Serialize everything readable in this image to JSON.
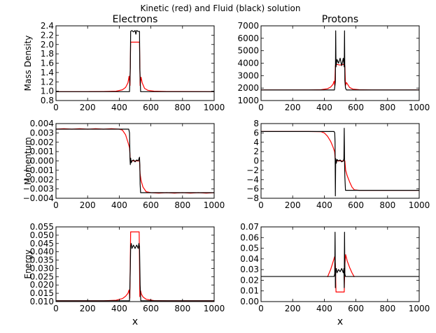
{
  "figure": {
    "suptitle": "Kinetic (red) and Fluid (black) solution",
    "legend_meaning": {
      "kinetic": "red",
      "fluid": "black"
    }
  },
  "colors": {
    "kinetic": "#ff0000",
    "fluid": "#000000",
    "axes": "#000000",
    "background": "#ffffff"
  },
  "chart_data": [
    {
      "id": "electrons-mass-density",
      "type": "line",
      "title": "Electrons",
      "xlabel": "",
      "ylabel": "Mass Density",
      "xlim": [
        0,
        1000
      ],
      "ylim": [
        0.8,
        2.4
      ],
      "xticks": [
        0,
        200,
        400,
        600,
        800,
        1000
      ],
      "yticks": [
        0.8,
        1.0,
        1.2,
        1.4,
        1.6,
        1.8,
        2.0,
        2.2,
        2.4
      ],
      "ytick_labels": [
        "0.8",
        "1.0",
        "1.2",
        "1.4",
        "1.6",
        "1.8",
        "2.0",
        "2.2",
        "2.4"
      ],
      "series": [
        {
          "name": "Kinetic",
          "color": "red",
          "x": [
            0,
            200,
            300,
            380,
            420,
            440,
            455,
            462,
            468,
            472,
            480,
            500,
            520,
            528,
            532,
            538,
            545,
            560,
            580,
            620,
            700,
            1000
          ],
          "y": [
            0.99,
            0.99,
            0.993,
            1.0,
            1.03,
            1.08,
            1.18,
            1.32,
            1.12,
            2.05,
            2.05,
            2.05,
            2.05,
            2.05,
            1.12,
            1.3,
            1.18,
            1.06,
            1.02,
            1.0,
            0.993,
            0.99
          ]
        },
        {
          "name": "Fluid",
          "color": "black",
          "x": [
            0,
            465,
            470,
            472,
            480,
            490,
            500,
            505,
            510,
            520,
            528,
            530,
            535,
            1000
          ],
          "y": [
            0.99,
            0.99,
            1.5,
            2.28,
            2.3,
            2.27,
            2.3,
            2.22,
            2.3,
            2.28,
            2.28,
            1.5,
            0.99,
            0.99
          ]
        }
      ]
    },
    {
      "id": "protons-mass-density",
      "type": "line",
      "title": "Protons",
      "xlabel": "",
      "ylabel": "",
      "xlim": [
        0,
        1000
      ],
      "ylim": [
        1000,
        7000
      ],
      "xticks": [
        0,
        200,
        400,
        600,
        800,
        1000
      ],
      "yticks": [
        1000,
        2000,
        3000,
        4000,
        5000,
        6000,
        7000
      ],
      "ytick_labels": [
        "1000",
        "2000",
        "3000",
        "4000",
        "5000",
        "6000",
        "7000"
      ],
      "series": [
        {
          "name": "Kinetic",
          "color": "red",
          "x": [
            0,
            300,
            380,
            420,
            440,
            455,
            462,
            466,
            470,
            480,
            500,
            520,
            530,
            534,
            540,
            550,
            560,
            580,
            620,
            700,
            1000
          ],
          "y": [
            1850,
            1850,
            1870,
            1950,
            2080,
            2300,
            2550,
            2200,
            3800,
            3900,
            3850,
            3900,
            3800,
            2200,
            2450,
            2250,
            2050,
            1920,
            1870,
            1850,
            1850
          ]
        },
        {
          "name": "Fluid",
          "color": "black",
          "x": [
            0,
            464,
            470,
            472,
            474,
            480,
            490,
            500,
            510,
            520,
            526,
            528,
            530,
            534,
            540,
            1000
          ],
          "y": [
            1850,
            1850,
            2500,
            6600,
            3700,
            4300,
            4000,
            4400,
            3800,
            4400,
            3700,
            6600,
            2600,
            2000,
            1850,
            1850
          ]
        }
      ]
    },
    {
      "id": "electrons-momentum",
      "type": "line",
      "title": "",
      "xlabel": "",
      "ylabel": "Momentum",
      "xlim": [
        0,
        1000
      ],
      "ylim": [
        -0.004,
        0.004
      ],
      "xticks": [
        0,
        200,
        400,
        600,
        800,
        1000
      ],
      "yticks": [
        -0.004,
        -0.003,
        -0.002,
        -0.001,
        0.0,
        0.001,
        0.002,
        0.003,
        0.004
      ],
      "ytick_labels": [
        "−0.004",
        "−0.003",
        "−0.002",
        "−0.001",
        "0.000",
        "0.001",
        "0.002",
        "0.003",
        "0.004"
      ],
      "series": [
        {
          "name": "Kinetic",
          "color": "red",
          "x": [
            0,
            50,
            100,
            150,
            200,
            250,
            300,
            350,
            400,
            420,
            440,
            455,
            465,
            470,
            480,
            500,
            520,
            528,
            532,
            538,
            550,
            570,
            600,
            650,
            700,
            750,
            800,
            850,
            900,
            950,
            1000
          ],
          "y": [
            0.0034,
            0.00345,
            0.0034,
            0.00345,
            0.0034,
            0.00345,
            0.0034,
            0.00345,
            0.0034,
            0.0033,
            0.0028,
            0.002,
            0.0014,
            0.0,
            0.0,
            0.0,
            0.0,
            0.0,
            -0.0014,
            -0.0021,
            -0.0028,
            -0.0033,
            -0.0034,
            -0.00345,
            -0.0034,
            -0.00345,
            -0.0034,
            -0.00345,
            -0.0034,
            -0.00345,
            -0.0034
          ]
        },
        {
          "name": "Fluid",
          "color": "black",
          "x": [
            0,
            460,
            465,
            468,
            470,
            472,
            476,
            480,
            490,
            500,
            510,
            520,
            524,
            528,
            530,
            532,
            535,
            540,
            1000
          ],
          "y": [
            0.0034,
            0.0034,
            0.003,
            0.0002,
            -0.0004,
            0.0003,
            -0.0002,
            0.0,
            0.0001,
            -0.0001,
            0.0001,
            0.0,
            0.0002,
            0.0004,
            -0.0004,
            -0.0025,
            -0.0034,
            -0.0034,
            -0.0034
          ]
        }
      ]
    },
    {
      "id": "protons-momentum",
      "type": "line",
      "title": "",
      "xlabel": "",
      "ylabel": "",
      "xlim": [
        0,
        1000
      ],
      "ylim": [
        -8,
        8
      ],
      "xticks": [
        0,
        200,
        400,
        600,
        800,
        1000
      ],
      "yticks": [
        -8,
        -6,
        -4,
        -2,
        0,
        2,
        4,
        6,
        8
      ],
      "ytick_labels": [
        "−8",
        "−6",
        "−4",
        "−2",
        "0",
        "2",
        "4",
        "6",
        "8"
      ],
      "series": [
        {
          "name": "Kinetic",
          "color": "red",
          "x": [
            0,
            300,
            380,
            400,
            420,
            440,
            455,
            465,
            470,
            480,
            500,
            520,
            530,
            535,
            545,
            560,
            575,
            590,
            620,
            700,
            1000
          ],
          "y": [
            6.3,
            6.3,
            6.25,
            6.0,
            5.3,
            4.2,
            3.0,
            2.0,
            0.0,
            0.0,
            0.0,
            0.0,
            0.0,
            -2.0,
            -3.2,
            -4.5,
            -5.6,
            -6.2,
            -6.3,
            -6.3,
            -6.3
          ]
        },
        {
          "name": "Fluid",
          "color": "black",
          "x": [
            0,
            462,
            466,
            468,
            470,
            472,
            476,
            480,
            490,
            500,
            510,
            520,
            524,
            526,
            528,
            530,
            534,
            540,
            1000
          ],
          "y": [
            6.3,
            6.3,
            6.0,
            4.0,
            -7.5,
            0.5,
            -0.5,
            0.3,
            0.0,
            0.2,
            -0.2,
            0.0,
            0.5,
            7.0,
            0.0,
            -3.5,
            -6.3,
            -6.3,
            -6.3
          ]
        }
      ]
    },
    {
      "id": "electrons-energy",
      "type": "line",
      "title": "",
      "xlabel": "x",
      "ylabel": "Energy",
      "xlim": [
        0,
        1000
      ],
      "ylim": [
        0.01,
        0.055
      ],
      "xticks": [
        0,
        200,
        400,
        600,
        800,
        1000
      ],
      "yticks": [
        0.01,
        0.015,
        0.02,
        0.025,
        0.03,
        0.035,
        0.04,
        0.045,
        0.05,
        0.055
      ],
      "ytick_labels": [
        "0.010",
        "0.015",
        "0.020",
        "0.025",
        "0.030",
        "0.035",
        "0.040",
        "0.045",
        "0.050",
        "0.055"
      ],
      "series": [
        {
          "name": "Kinetic",
          "color": "red",
          "x": [
            0,
            300,
            380,
            420,
            440,
            455,
            462,
            467,
            472,
            480,
            500,
            520,
            526,
            530,
            535,
            540,
            550,
            570,
            620,
            700,
            1000
          ],
          "y": [
            0.0105,
            0.0105,
            0.0108,
            0.0118,
            0.0132,
            0.015,
            0.017,
            0.012,
            0.052,
            0.052,
            0.052,
            0.052,
            0.052,
            0.013,
            0.0165,
            0.0145,
            0.0128,
            0.0114,
            0.0106,
            0.0105,
            0.0105
          ]
        },
        {
          "name": "Fluid",
          "color": "black",
          "x": [
            0,
            465,
            470,
            472,
            476,
            480,
            490,
            500,
            510,
            520,
            524,
            528,
            532,
            536,
            1000
          ],
          "y": [
            0.0105,
            0.0105,
            0.03,
            0.043,
            0.045,
            0.042,
            0.044,
            0.042,
            0.044,
            0.042,
            0.045,
            0.043,
            0.02,
            0.0105,
            0.0105
          ]
        }
      ]
    },
    {
      "id": "protons-energy",
      "type": "line",
      "title": "",
      "xlabel": "x",
      "ylabel": "",
      "xlim": [
        0,
        1000
      ],
      "ylim": [
        0.0,
        0.07
      ],
      "xticks": [
        0,
        200,
        400,
        600,
        800,
        1000
      ],
      "yticks": [
        0.0,
        0.01,
        0.02,
        0.03,
        0.04,
        0.05,
        0.06,
        0.07
      ],
      "ytick_labels": [
        "0.00",
        "0.01",
        "0.02",
        "0.03",
        "0.04",
        "0.05",
        "0.06",
        "0.07"
      ],
      "series": [
        {
          "name": "Kinetic",
          "color": "red",
          "x": [
            420,
            440,
            455,
            465,
            470,
            474,
            480,
            500,
            520,
            526,
            530,
            535,
            545,
            560,
            575,
            590
          ],
          "y": [
            0.023,
            0.03,
            0.037,
            0.042,
            0.035,
            0.009,
            0.009,
            0.009,
            0.009,
            0.009,
            0.035,
            0.044,
            0.038,
            0.032,
            0.027,
            0.023
          ]
        },
        {
          "name": "Fluid",
          "color": "black",
          "x": [
            0,
            462,
            466,
            468,
            470,
            472,
            476,
            480,
            490,
            500,
            510,
            520,
            524,
            526,
            528,
            530,
            534,
            540,
            1000
          ],
          "y": [
            0.0235,
            0.0235,
            0.026,
            0.065,
            0.013,
            0.028,
            0.031,
            0.027,
            0.03,
            0.028,
            0.031,
            0.027,
            0.031,
            0.013,
            0.065,
            0.026,
            0.0235,
            0.0235,
            0.0235
          ]
        }
      ]
    }
  ]
}
